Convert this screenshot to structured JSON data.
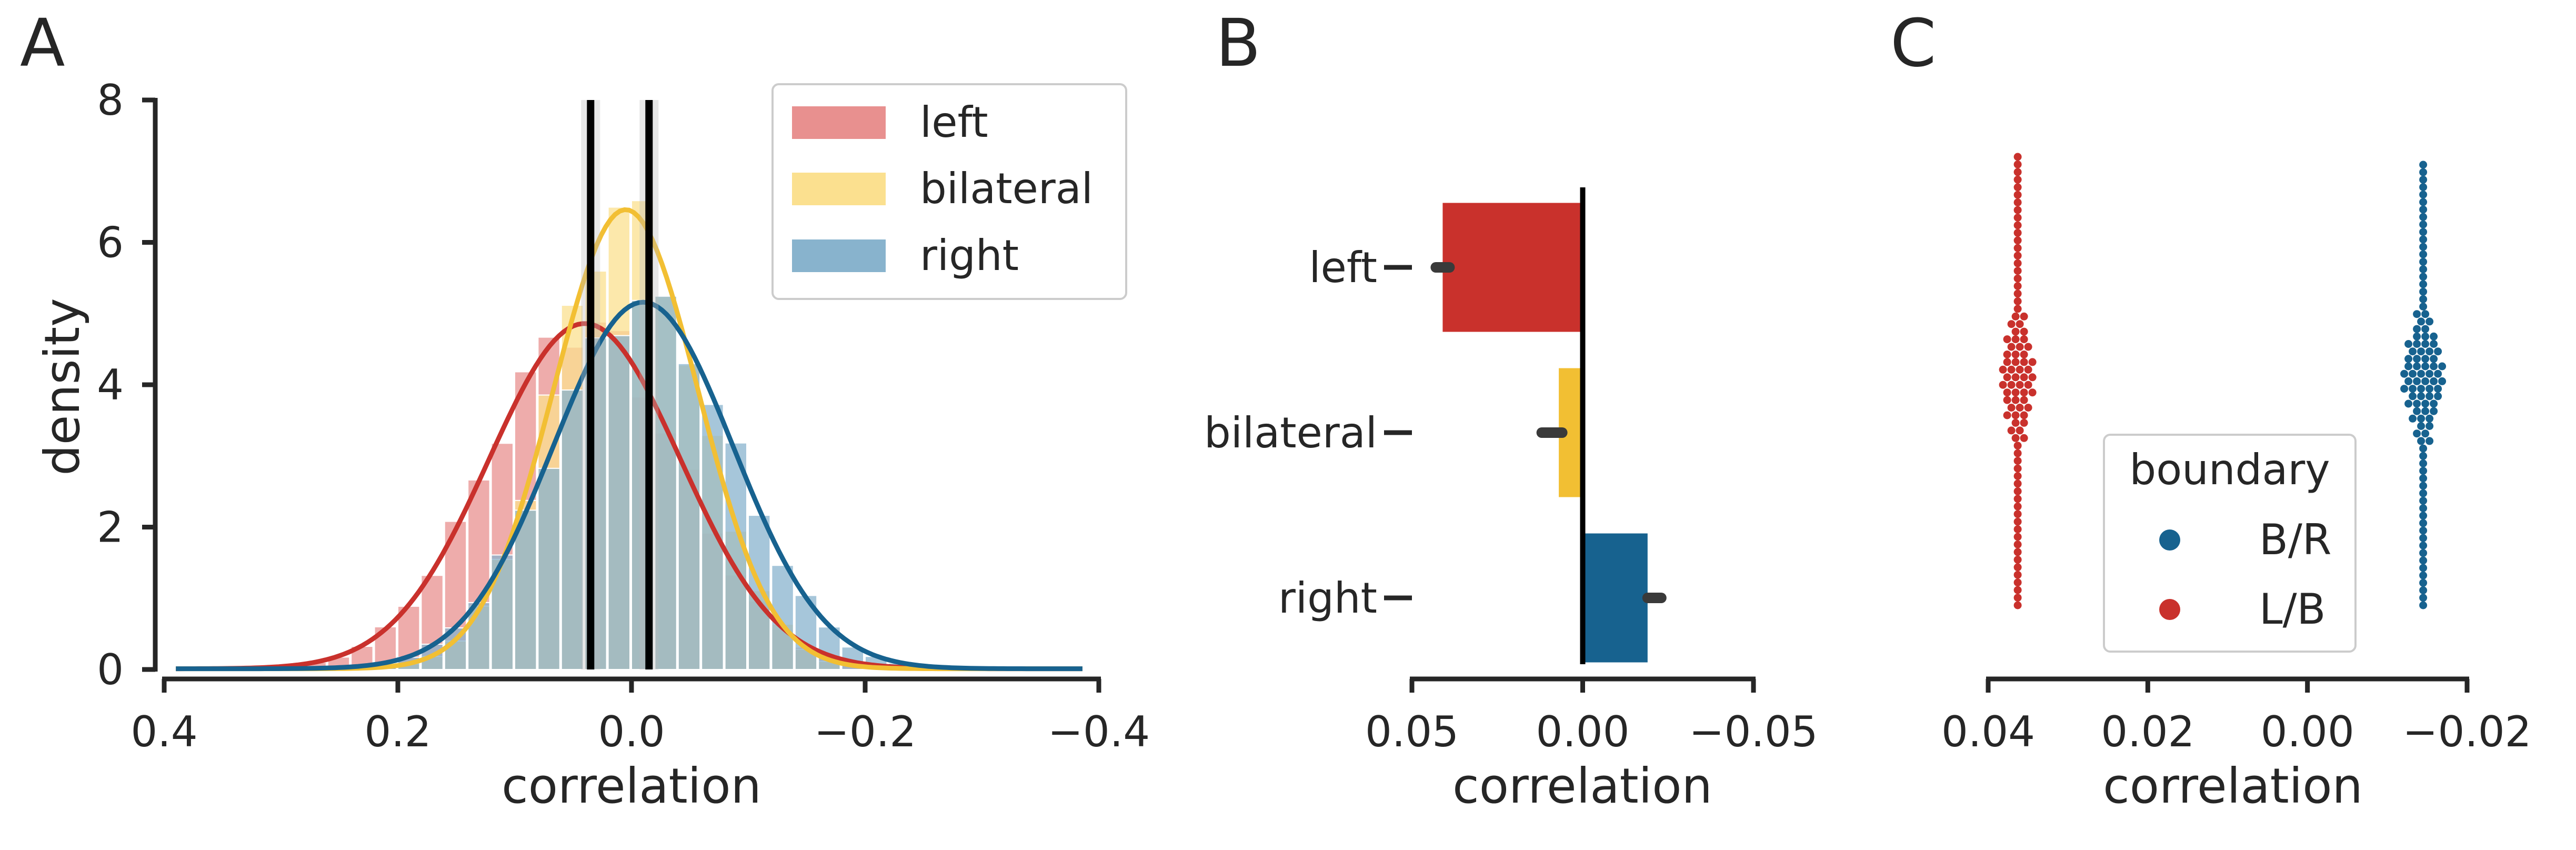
{
  "panels": {
    "a": {
      "letter": "A"
    },
    "b": {
      "letter": "B"
    },
    "c": {
      "letter": "C"
    }
  },
  "colors": {
    "left": "#c9312c",
    "left_hist": "#e8908f",
    "bilateral": "#f2bf33",
    "bilateral_hist": "#fbe08f",
    "right": "#17628f",
    "right_hist": "#88b3cd",
    "axis": "#262626",
    "errorbar": "#3a3a3a"
  },
  "chart_data": [
    {
      "type": "area",
      "panel": "A",
      "xlabel": "correlation",
      "ylabel": "density",
      "xlim": [
        0.4,
        -0.4
      ],
      "ylim": [
        0,
        8
      ],
      "x_inverted": true,
      "xticks": [
        0.4,
        0.2,
        0.0,
        -0.2,
        -0.4
      ],
      "xtick_labels": [
        "0.4",
        "0.2",
        "0.0",
        "−0.2",
        "−0.4"
      ],
      "yticks": [
        0,
        2,
        4,
        6,
        8
      ],
      "ytick_labels": [
        "0",
        "2",
        "4",
        "6",
        "8"
      ],
      "legend_position": "top-right",
      "series": [
        {
          "name": "left",
          "mean": 0.04,
          "sd": 0.082,
          "peak_density": 4.85
        },
        {
          "name": "bilateral",
          "mean": 0.005,
          "sd": 0.062,
          "peak_density": 6.45
        },
        {
          "name": "right",
          "mean": -0.01,
          "sd": 0.077,
          "peak_density": 5.15
        }
      ],
      "vertical_lines": [
        0.035,
        -0.015
      ]
    },
    {
      "type": "bar",
      "panel": "B",
      "orientation": "horizontal",
      "categories": [
        "left",
        "bilateral",
        "right"
      ],
      "values": [
        0.041,
        0.007,
        -0.019
      ],
      "error_center": [
        0.041,
        0.009,
        -0.021
      ],
      "error_halfwidth": [
        0.002,
        0.003,
        0.002
      ],
      "xlabel": "correlation",
      "xlim": [
        0.05,
        -0.05
      ],
      "x_inverted": true,
      "xticks": [
        0.05,
        0.0,
        -0.05
      ],
      "xtick_labels": [
        "0.05",
        "0.00",
        "−0.05"
      ]
    },
    {
      "type": "scatter",
      "panel": "C",
      "subtype": "swarm",
      "xlabel": "correlation",
      "xlim": [
        0.04,
        -0.02
      ],
      "x_inverted": true,
      "xticks": [
        0.04,
        0.02,
        0.0,
        -0.02
      ],
      "xtick_labels": [
        "0.04",
        "0.02",
        "0.00",
        "−0.02"
      ],
      "legend_title": "boundary",
      "legend_position": "lower-center",
      "series": [
        {
          "name": "B/R",
          "center": -0.0145,
          "count": 60
        },
        {
          "name": "L/B",
          "center": 0.0363,
          "count": 60
        }
      ]
    }
  ]
}
